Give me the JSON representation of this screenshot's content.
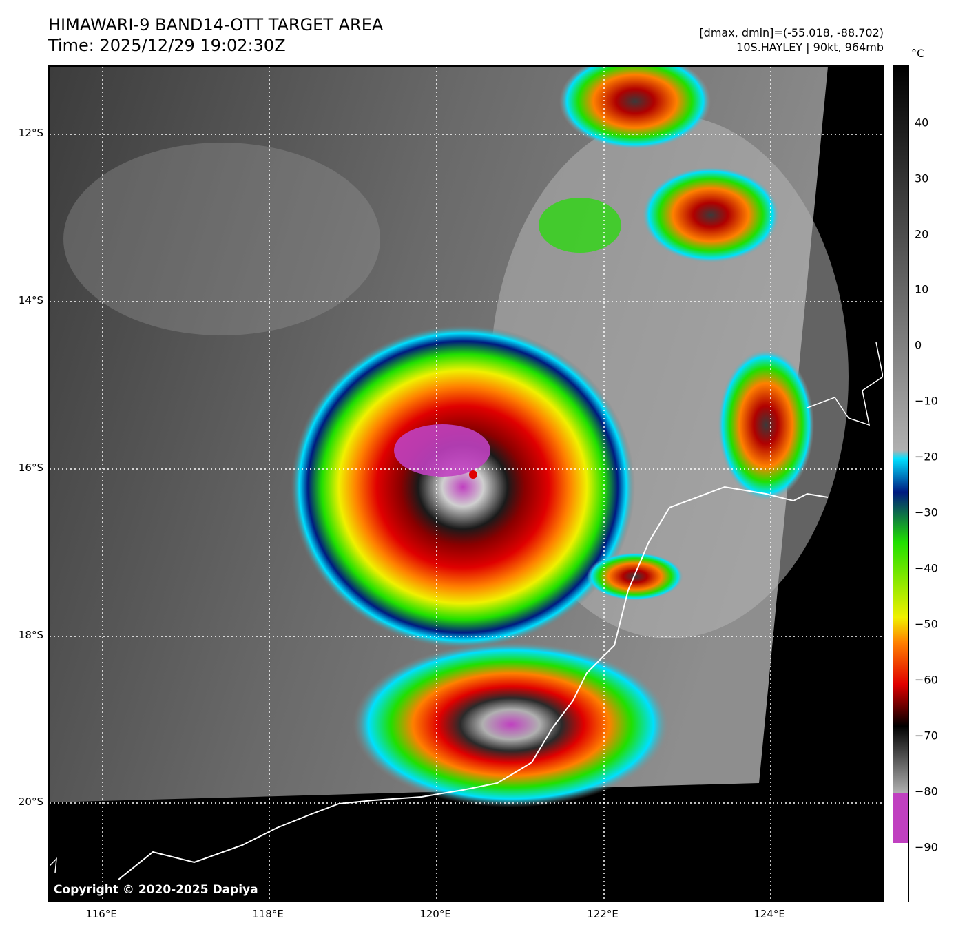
{
  "header": {
    "title_line1": "HIMAWARI-9 BAND14-OTT TARGET AREA",
    "title_line2": "Time: 2025/12/29 19:02:30Z",
    "info_line1": "[dmax, dmin]=(-55.018, -88.702)",
    "info_line2": "10S.HAYLEY | 90kt, 964mb"
  },
  "map": {
    "copyright": "Copyright © 2020-2025 Dapiya",
    "lat_labels": [
      "12°S",
      "14°S",
      "16°S",
      "18°S",
      "20°S"
    ],
    "lon_labels": [
      "116°E",
      "118°E",
      "120°E",
      "122°E",
      "124°E"
    ]
  },
  "colorbar": {
    "unit": "°C",
    "labels": [
      "40",
      "30",
      "20",
      "10",
      "0",
      "−10",
      "−20",
      "−30",
      "−40",
      "−50",
      "−60",
      "−70",
      "−80",
      "−90"
    ],
    "colors": {
      "white": "#ffffff",
      "magenta": "#c040c0",
      "gray_light": "#b0b0b0",
      "black": "#000000",
      "red": "#e00000",
      "orange": "#ff8000",
      "yellow": "#f0f000",
      "green": "#20e000",
      "dark_blue": "#001a80",
      "cyan": "#00e0ff"
    }
  }
}
